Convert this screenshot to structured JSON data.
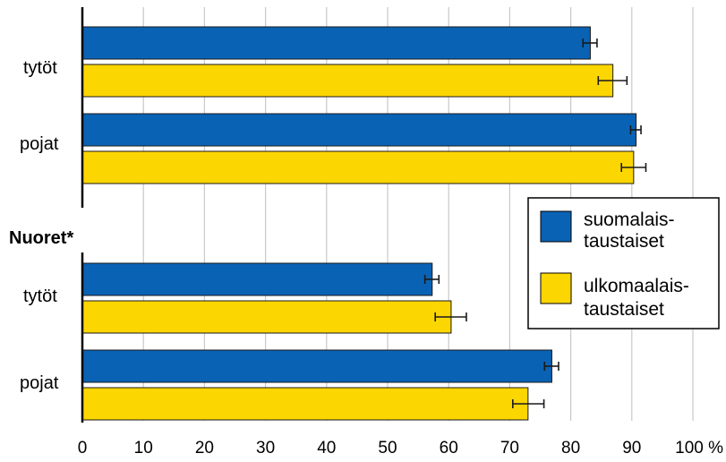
{
  "chart_data": {
    "type": "bar",
    "orientation": "horizontal",
    "groups": [
      {
        "label": "",
        "categories": [
          "tytöt",
          "pojat"
        ],
        "series": [
          {
            "name": "suomalais-taustaiset",
            "values": [
              83.2,
              90.7
            ],
            "error": [
              [
                82.0,
                84.3
              ],
              [
                89.8,
                91.5
              ]
            ]
          },
          {
            "name": "ulkomaalais-taustaiset",
            "values": [
              86.9,
              90.3
            ],
            "error": [
              [
                84.5,
                89.2
              ],
              [
                88.3,
                92.3
              ]
            ]
          }
        ]
      },
      {
        "label": "Nuoret*",
        "categories": [
          "tytöt",
          "pojat"
        ],
        "series": [
          {
            "name": "suomalais-taustaiset",
            "values": [
              57.3,
              76.9
            ],
            "error": [
              [
                56.1,
                58.4
              ],
              [
                75.7,
                78.0
              ]
            ]
          },
          {
            "name": "ulkomaalais-taustaiset",
            "values": [
              60.4,
              73.0
            ],
            "error": [
              [
                57.8,
                62.9
              ],
              [
                70.5,
                75.6
              ]
            ]
          }
        ]
      }
    ],
    "xlim": [
      0,
      100
    ],
    "xticks": [
      "0",
      "10",
      "20",
      "30",
      "40",
      "50",
      "60",
      "70",
      "80",
      "90",
      "100 %"
    ],
    "grid": true,
    "legend": {
      "position": "right-middle",
      "entries": [
        {
          "lines": [
            "suomalais-",
            "taustaiset"
          ],
          "color": "#0a62b4"
        },
        {
          "lines": [
            "ulkomaalais-",
            "taustaiset"
          ],
          "color": "#fcd600"
        }
      ]
    },
    "colors": {
      "series1": "#0a62b4",
      "series2": "#fcd600",
      "grid": "#c8c8c8",
      "axis": "#000000"
    }
  }
}
